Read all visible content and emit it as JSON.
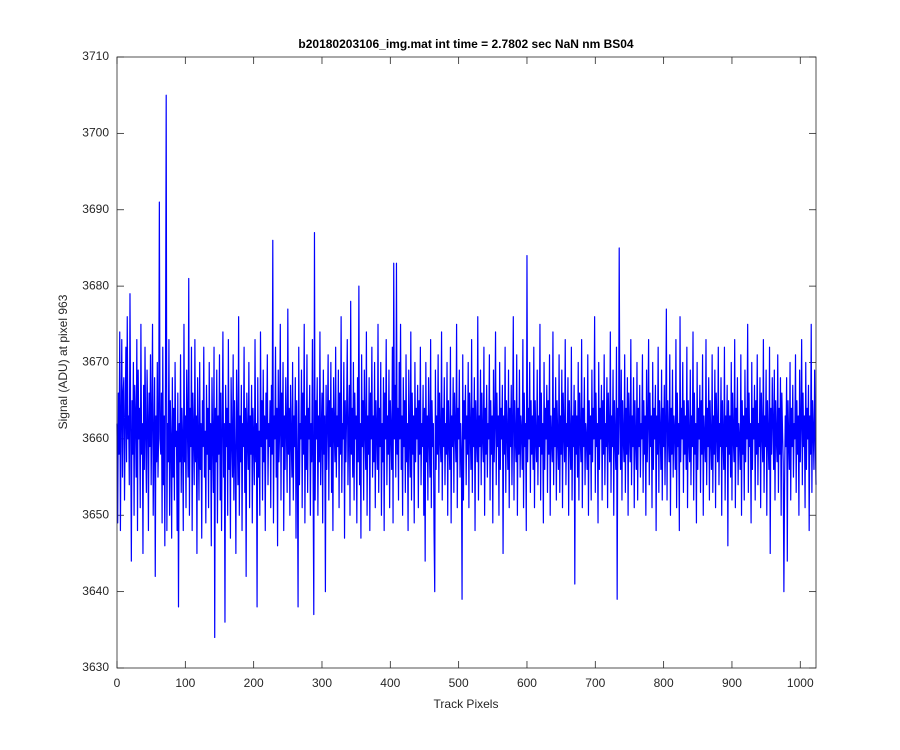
{
  "chart_data": {
    "type": "line",
    "title": "b20180203106_img.mat int time = 2.7802 sec  NaN nm BS04",
    "xlabel": "Track Pixels",
    "ylabel": "Signal (ADU) at pixel 963",
    "color": "#0000ff",
    "xlim": [
      0,
      1023
    ],
    "xticks": [
      0,
      100,
      200,
      300,
      400,
      500,
      600,
      700,
      800,
      900,
      1000
    ],
    "ylim": [
      3630,
      3710
    ],
    "yticks": [
      3630,
      3640,
      3650,
      3660,
      3670,
      3680,
      3690,
      3700,
      3710
    ],
    "grid": false,
    "values": [
      3662,
      3649,
      3666,
      3658,
      3674,
      3648,
      3663,
      3673,
      3655,
      3666,
      3668,
      3652,
      3662,
      3672,
      3657,
      3676,
      3660,
      3663,
      3654,
      3679,
      3662,
      3644,
      3665,
      3658,
      3670,
      3650,
      3667,
      3663,
      3655,
      3673,
      3648,
      3669,
      3660,
      3664,
      3651,
      3675,
      3658,
      3662,
      3645,
      3667,
      3656,
      3672,
      3660,
      3653,
      3669,
      3663,
      3648,
      3666,
      3659,
      3671,
      3654,
      3663,
      3675,
      3650,
      3660,
      3668,
      3642,
      3663,
      3657,
      3670,
      3655,
      3661,
      3691,
      3660,
      3658,
      3666,
      3649,
      3672,
      3654,
      3663,
      3646,
      3669,
      3705,
      3648,
      3662,
      3657,
      3673,
      3650,
      3665,
      3660,
      3647,
      3668,
      3655,
      3664,
      3652,
      3670,
      3659,
      3661,
      3648,
      3666,
      3638,
      3662,
      3657,
      3671,
      3653,
      3664,
      3660,
      3648,
      3675,
      3657,
      3663,
      3651,
      3669,
      3662,
      3655,
      3681,
      3650,
      3664,
      3659,
      3672,
      3648,
      3666,
      3661,
      3654,
      3673,
      3657,
      3663,
      3645,
      3668,
      3660,
      3652,
      3670,
      3656,
      3662,
      3647,
      3665,
      3659,
      3672,
      3655,
      3661,
      3649,
      3667,
      3658,
      3664,
      3651,
      3670,
      3656,
      3662,
      3646,
      3668,
      3660,
      3653,
      3672,
      3634,
      3664,
      3657,
      3669,
      3649,
      3663,
      3658,
      3671,
      3652,
      3666,
      3648,
      3661,
      3674,
      3655,
      3662,
      3636,
      3667,
      3659,
      3664,
      3650,
      3673,
      3656,
      3662,
      3647,
      3668,
      3660,
      3655,
      3671,
      3652,
      3665,
      3658,
      3645,
      3669,
      3661,
      3654,
      3676,
      3650,
      3663,
      3657,
      3667,
      3648,
      3662,
      3659,
      3672,
      3653,
      3664,
      3642,
      3666,
      3660,
      3656,
      3670,
      3651,
      3663,
      3658,
      3667,
      3649,
      3664,
      3660,
      3654,
      3673,
      3657,
      3662,
      3638,
      3668,
      3655,
      3661,
      3650,
      3674,
      3659,
      3665,
      3652,
      3669,
      3657,
      3663,
      3648,
      3666,
      3660,
      3671,
      3654,
      3662,
      3659,
      3665,
      3651,
      3667,
      3658,
      3686,
      3649,
      3663,
      3660,
      3672,
      3655,
      3664,
      3646,
      3669,
      3657,
      3661,
      3675,
      3652,
      3666,
      3659,
      3670,
      3648,
      3663,
      3656,
      3668,
      3661,
      3653,
      3677,
      3658,
      3664,
      3650,
      3667,
      3660,
      3655,
      3670,
      3652,
      3663,
      3659,
      3668,
      3647,
      3665,
      3657,
      3638,
      3672,
      3654,
      3662,
      3660,
      3669,
      3651,
      3666,
      3658,
      3675,
      3649,
      3663,
      3656,
      3671,
      3653,
      3664,
      3660,
      3667,
      3650,
      3662,
      3657,
      3673,
      3655,
      3637,
      3687,
      3652,
      3665,
      3660,
      3668,
      3650,
      3663,
      3657,
      3674,
      3654,
      3661,
      3666,
      3649,
      3669,
      3658,
      3663,
      3640,
      3667,
      3656,
      3662,
      3671,
      3652,
      3665,
      3659,
      3670,
      3653,
      3664,
      3648,
      3668,
      3661,
      3657,
      3672,
      3655,
      3663,
      3659,
      3669,
      3651,
      3666,
      3658,
      3676,
      3653,
      3662,
      3660,
      3670,
      3647,
      3665,
      3657,
      3663,
      3673,
      3654,
      3661,
      3667,
      3650,
      3678,
      3658,
      3664,
      3655,
      3670,
      3652,
      3666,
      3660,
      3663,
      3649,
      3668,
      3657,
      3680,
      3654,
      3662,
      3647,
      3671,
      3659,
      3665,
      3652,
      3669,
      3661,
      3656,
      3674,
      3650,
      3663,
      3658,
      3668,
      3648,
      3666,
      3660,
      3672,
      3655,
      3663,
      3657,
      3670,
      3651,
      3665,
      3661,
      3656,
      3675,
      3653,
      3664,
      3659,
      3670,
      3650,
      3662,
      3657,
      3668,
      3648,
      3666,
      3660,
      3673,
      3654,
      3663,
      3658,
      3669,
      3651,
      3665,
      3661,
      3656,
      3672,
      3649,
      3683,
      3660,
      3667,
      3655,
      3683,
      3658,
      3664,
      3652,
      3670,
      3660,
      3675,
      3656,
      3663,
      3650,
      3668,
      3659,
      3665,
      3653,
      3671,
      3657,
      3662,
      3648,
      3669,
      3660,
      3655,
      3674,
      3652,
      3666,
      3658,
      3663,
      3649,
      3670,
      3657,
      3664,
      3660,
      3667,
      3651,
      3665,
      3658,
      3672,
      3654,
      3662,
      3659,
      3667,
      3650,
      3664,
      3644,
      3670,
      3657,
      3663,
      3652,
      3668,
      3660,
      3655,
      3673,
      3651,
      3665,
      3659,
      3662,
      3648,
      3640,
      3669,
      3656,
      3663,
      3658,
      3671,
      3653,
      3666,
      3660,
      3657,
      3674,
      3652,
      3664,
      3659,
      3668,
      3654,
      3662,
      3658,
      3670,
      3650,
      3665,
      3660,
      3656,
      3672,
      3649,
      3663,
      3659,
      3668,
      3653,
      3666,
      3661,
      3657,
      3675,
      3651,
      3664,
      3660,
      3669,
      3655,
      3662,
      3658,
      3639,
      3671,
      3652,
      3665,
      3660,
      3667,
      3654,
      3663,
      3658,
      3670,
      3651,
      3666,
      3661,
      3656,
      3673,
      3653,
      3664,
      3659,
      3668,
      3648,
      3665,
      3660,
      3657,
      3676,
      3652,
      3663,
      3659,
      3669,
      3654,
      3666,
      3660,
      3657,
      3672,
      3650,
      3664,
      3658,
      3667,
      3655,
      3662,
      3660,
      3671,
      3652,
      3665,
      3658,
      3663,
      3649,
      3669,
      3657,
      3662,
      3674,
      3654,
      3666,
      3659,
      3663,
      3650,
      3670,
      3656,
      3664,
      3660,
      3667,
      3645,
      3663,
      3658,
      3672,
      3653,
      3665,
      3661,
      3656,
      3669,
      3651,
      3664,
      3659,
      3667,
      3654,
      3662,
      3676,
      3652,
      3665,
      3660,
      3657,
      3671,
      3650,
      3664,
      3658,
      3669,
      3655,
      3663,
      3661,
      3656,
      3673,
      3651,
      3666,
      3659,
      3662,
      3648,
      3684,
      3657,
      3664,
      3660,
      3670,
      3653,
      3665,
      3658,
      3663,
      3656,
      3672,
      3651,
      3665,
      3660,
      3657,
      3669,
      3654,
      3663,
      3659,
      3675,
      3652,
      3666,
      3658,
      3662,
      3649,
      3670,
      3656,
      3664,
      3660,
      3667,
      3653,
      3665,
      3658,
      3671,
      3650,
      3663,
      3660,
      3657,
      3674,
      3654,
      3664,
      3659,
      3668,
      3652,
      3665,
      3660,
      3656,
      3671,
      3653,
      3663,
      3658,
      3669,
      3651,
      3666,
      3661,
      3657,
      3673,
      3654,
      3662,
      3659,
      3668,
      3650,
      3665,
      3660,
      3656,
      3672,
      3652,
      3663,
      3659,
      3667,
      3641,
      3665,
      3658,
      3663,
      3655,
      3670,
      3652,
      3666,
      3660,
      3657,
      3673,
      3651,
      3664,
      3659,
      3668,
      3654,
      3662,
      3660,
      3656,
      3671,
      3650,
      3665,
      3658,
      3663,
      3652,
      3669,
      3657,
      3664,
      3660,
      3676,
      3653,
      3666,
      3659,
      3662,
      3649,
      3670,
      3656,
      3664,
      3660,
      3667,
      3652,
      3665,
      3658,
      3671,
      3654,
      3662,
      3659,
      3668,
      3651,
      3666,
      3661,
      3657,
      3674,
      3653,
      3663,
      3659,
      3669,
      3650,
      3665,
      3660,
      3656,
      3672,
      3639,
      3664,
      3658,
      3685,
      3662,
      3656,
      3669,
      3652,
      3665,
      3660,
      3657,
      3671,
      3653,
      3664,
      3658,
      3668,
      3650,
      3666,
      3661,
      3657,
      3673,
      3654,
      3663,
      3659,
      3668,
      3651,
      3665,
      3660,
      3656,
      3670,
      3652,
      3664,
      3659,
      3667,
      3655,
      3662,
      3660,
      3671,
      3653,
      3665,
      3658,
      3663,
      3650,
      3669,
      3657,
      3662,
      3673,
      3654,
      3666,
      3659,
      3663,
      3651,
      3670,
      3656,
      3664,
      3660,
      3667,
      3648,
      3663,
      3658,
      3672,
      3653,
      3665,
      3661,
      3656,
      3669,
      3652,
      3664,
      3659,
      3667,
      3654,
      3662,
      3677,
      3652,
      3665,
      3660,
      3657,
      3671,
      3650,
      3664,
      3658,
      3669,
      3655,
      3663,
      3661,
      3656,
      3673,
      3651,
      3666,
      3659,
      3662,
      3648,
      3676,
      3657,
      3664,
      3660,
      3670,
      3653,
      3665,
      3658,
      3663,
      3656,
      3672,
      3651,
      3665,
      3660,
      3657,
      3669,
      3654,
      3663,
      3659,
      3674,
      3652,
      3666,
      3658,
      3662,
      3649,
      3670,
      3656,
      3664,
      3660,
      3667,
      3653,
      3665,
      3658,
      3671,
      3650,
      3663,
      3660,
      3657,
      3673,
      3654,
      3664,
      3659,
      3668,
      3652,
      3665,
      3660,
      3656,
      3671,
      3653,
      3663,
      3658,
      3669,
      3651,
      3666,
      3661,
      3657,
      3672,
      3654,
      3662,
      3659,
      3668,
      3650,
      3665,
      3660,
      3656,
      3672,
      3652,
      3663,
      3659,
      3667,
      3646,
      3665,
      3658,
      3663,
      3655,
      3670,
      3652,
      3666,
      3660,
      3657,
      3673,
      3651,
      3664,
      3659,
      3668,
      3654,
      3662,
      3660,
      3656,
      3671,
      3650,
      3665,
      3658,
      3663,
      3652,
      3669,
      3657,
      3664,
      3660,
      3675,
      3653,
      3666,
      3659,
      3662,
      3649,
      3670,
      3656,
      3664,
      3660,
      3667,
      3652,
      3665,
      3658,
      3671,
      3654,
      3662,
      3659,
      3668,
      3651,
      3666,
      3661,
      3657,
      3673,
      3653,
      3663,
      3659,
      3669,
      3650,
      3665,
      3660,
      3656,
      3672,
      3645,
      3664,
      3658,
      3668,
      3662,
      3656,
      3669,
      3652,
      3665,
      3660,
      3657,
      3671,
      3653,
      3664,
      3658,
      3668,
      3650,
      3666,
      3661,
      3657,
      3640,
      3654,
      3663,
      3659,
      3668,
      3644,
      3665,
      3660,
      3656,
      3670,
      3652,
      3664,
      3659,
      3667,
      3655,
      3662,
      3660,
      3671,
      3653,
      3665,
      3658,
      3663,
      3650,
      3669,
      3657,
      3662,
      3673,
      3654,
      3666,
      3659,
      3663,
      3651,
      3670,
      3656,
      3664,
      3660,
      3667,
      3648,
      3663,
      3658,
      3675,
      3653,
      3665,
      3661,
      3656,
      3669,
      3660,
      3654
    ]
  }
}
